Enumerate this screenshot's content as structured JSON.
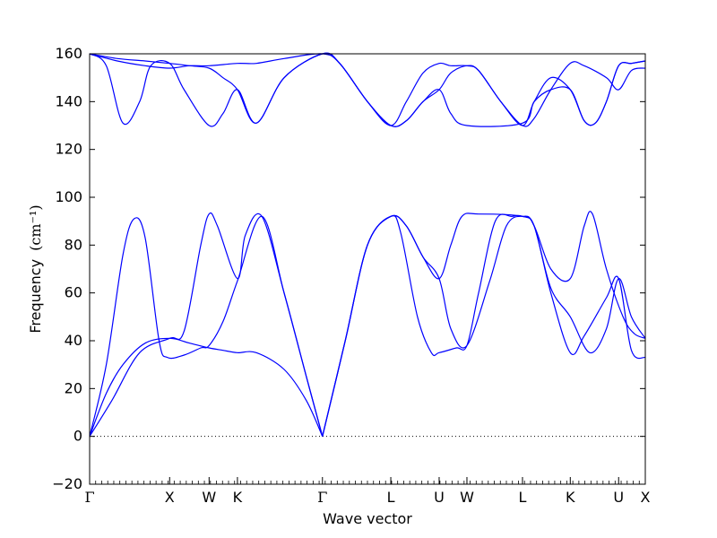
{
  "chart_data": {
    "type": "line",
    "xlabel": "Wave vector",
    "ylabel": "Frequency",
    "ylabel_unit": "(cm⁻¹)",
    "ylim": [
      -20,
      160
    ],
    "yticks": [
      -20,
      0,
      20,
      40,
      60,
      80,
      100,
      120,
      140,
      160
    ],
    "zero_line": "dotted",
    "line_color": "#0000ff",
    "x_points": [
      {
        "label": "Γ",
        "pos": 0
      },
      {
        "label": "X",
        "pos": 0.144
      },
      {
        "label": "W",
        "pos": 0.215
      },
      {
        "label": "K",
        "pos": 0.266
      },
      {
        "label": "Γ",
        "pos": 0.419
      },
      {
        "label": "L",
        "pos": 0.542
      },
      {
        "label": "U",
        "pos": 0.629
      },
      {
        "label": "W",
        "pos": 0.679
      },
      {
        "label": "L",
        "pos": 0.779
      },
      {
        "label": "K",
        "pos": 0.865
      },
      {
        "label": "U",
        "pos": 0.952
      },
      {
        "label": "X",
        "pos": 1.0
      }
    ],
    "series": [
      {
        "values": [
          [
            0,
            0
          ],
          [
            0.03,
            18
          ],
          [
            0.06,
            30
          ],
          [
            0.1,
            39
          ],
          [
            0.144,
            41
          ],
          [
            0.18,
            39
          ],
          [
            0.215,
            37
          ],
          [
            0.24,
            36
          ],
          [
            0.266,
            35
          ],
          [
            0.3,
            35
          ],
          [
            0.35,
            28
          ],
          [
            0.39,
            15
          ],
          [
            0.419,
            0
          ]
        ]
      },
      {
        "values": [
          [
            0,
            0
          ],
          [
            0.03,
            30
          ],
          [
            0.06,
            76
          ],
          [
            0.08,
            91
          ],
          [
            0.1,
            83
          ],
          [
            0.125,
            40
          ],
          [
            0.14,
            33
          ],
          [
            0.17,
            34
          ],
          [
            0.2,
            37
          ],
          [
            0.215,
            38
          ],
          [
            0.24,
            48
          ],
          [
            0.266,
            65
          ],
          [
            0.31,
            92
          ],
          [
            0.35,
            60
          ],
          [
            0.39,
            25
          ],
          [
            0.419,
            0
          ]
        ]
      },
      {
        "values": [
          [
            0,
            0
          ],
          [
            0.04,
            15
          ],
          [
            0.09,
            35
          ],
          [
            0.144,
            41
          ],
          [
            0.17,
            44
          ],
          [
            0.2,
            80
          ],
          [
            0.215,
            93
          ],
          [
            0.23,
            88
          ],
          [
            0.266,
            66
          ],
          [
            0.28,
            84
          ],
          [
            0.31,
            92
          ],
          [
            0.35,
            60
          ],
          [
            0.39,
            25
          ],
          [
            0.419,
            0
          ]
        ]
      },
      {
        "values": [
          [
            0.419,
            0
          ],
          [
            0.46,
            40
          ],
          [
            0.5,
            80
          ],
          [
            0.542,
            92
          ],
          [
            0.56,
            85
          ],
          [
            0.59,
            50
          ],
          [
            0.615,
            35
          ],
          [
            0.629,
            35
          ],
          [
            0.66,
            37
          ],
          [
            0.679,
            38
          ],
          [
            0.7,
            60
          ],
          [
            0.73,
            90
          ],
          [
            0.76,
            92
          ],
          [
            0.779,
            92
          ],
          [
            0.8,
            88
          ],
          [
            0.83,
            60
          ],
          [
            0.865,
            35
          ],
          [
            0.89,
            42
          ],
          [
            0.93,
            58
          ],
          [
            0.952,
            66
          ],
          [
            0.975,
            36
          ],
          [
            1.0,
            33
          ]
        ]
      },
      {
        "values": [
          [
            0.419,
            0
          ],
          [
            0.46,
            40
          ],
          [
            0.5,
            80
          ],
          [
            0.542,
            92
          ],
          [
            0.57,
            88
          ],
          [
            0.6,
            75
          ],
          [
            0.629,
            66
          ],
          [
            0.65,
            80
          ],
          [
            0.67,
            92
          ],
          [
            0.7,
            93
          ],
          [
            0.779,
            92
          ],
          [
            0.8,
            88
          ],
          [
            0.83,
            70
          ],
          [
            0.865,
            66
          ],
          [
            0.89,
            88
          ],
          [
            0.905,
            93
          ],
          [
            0.93,
            70
          ],
          [
            0.96,
            50
          ],
          [
            0.98,
            43
          ],
          [
            1.0,
            41
          ]
        ]
      },
      {
        "values": [
          [
            0.419,
            0
          ],
          [
            0.46,
            40
          ],
          [
            0.5,
            80
          ],
          [
            0.542,
            92
          ],
          [
            0.57,
            88
          ],
          [
            0.6,
            75
          ],
          [
            0.629,
            66
          ],
          [
            0.65,
            45
          ],
          [
            0.679,
            38
          ],
          [
            0.72,
            65
          ],
          [
            0.75,
            88
          ],
          [
            0.779,
            92
          ],
          [
            0.8,
            88
          ],
          [
            0.83,
            62
          ],
          [
            0.865,
            50
          ],
          [
            0.9,
            35
          ],
          [
            0.93,
            45
          ],
          [
            0.952,
            66
          ],
          [
            0.975,
            50
          ],
          [
            1.0,
            41
          ]
        ]
      },
      {
        "values": [
          [
            0,
            160
          ],
          [
            0.05,
            157
          ],
          [
            0.1,
            155
          ],
          [
            0.144,
            154
          ],
          [
            0.18,
            155
          ],
          [
            0.215,
            155
          ],
          [
            0.266,
            156
          ],
          [
            0.3,
            156
          ],
          [
            0.35,
            158
          ],
          [
            0.419,
            160
          ],
          [
            0.45,
            156
          ],
          [
            0.5,
            140
          ],
          [
            0.542,
            130
          ],
          [
            0.57,
            132
          ],
          [
            0.6,
            140
          ],
          [
            0.629,
            145
          ],
          [
            0.65,
            152
          ],
          [
            0.679,
            155
          ],
          [
            0.7,
            153
          ],
          [
            0.74,
            140
          ],
          [
            0.779,
            130
          ],
          [
            0.8,
            133
          ],
          [
            0.83,
            145
          ],
          [
            0.865,
            156
          ],
          [
            0.89,
            155
          ],
          [
            0.93,
            150
          ],
          [
            0.952,
            145
          ],
          [
            0.975,
            153
          ],
          [
            1.0,
            154
          ]
        ]
      },
      {
        "values": [
          [
            0,
            160
          ],
          [
            0.05,
            158
          ],
          [
            0.1,
            157
          ],
          [
            0.144,
            156
          ],
          [
            0.18,
            155
          ],
          [
            0.215,
            154
          ],
          [
            0.24,
            150
          ],
          [
            0.266,
            145
          ],
          [
            0.3,
            131
          ],
          [
            0.35,
            150
          ],
          [
            0.419,
            160
          ],
          [
            0.45,
            156
          ],
          [
            0.5,
            140
          ],
          [
            0.542,
            130
          ],
          [
            0.57,
            140
          ],
          [
            0.6,
            152
          ],
          [
            0.629,
            156
          ],
          [
            0.65,
            155
          ],
          [
            0.679,
            155
          ],
          [
            0.7,
            153
          ],
          [
            0.74,
            140
          ],
          [
            0.779,
            130
          ],
          [
            0.8,
            140
          ],
          [
            0.83,
            150
          ],
          [
            0.865,
            145
          ],
          [
            0.89,
            132
          ],
          [
            0.91,
            131
          ],
          [
            0.93,
            140
          ],
          [
            0.952,
            155
          ],
          [
            0.975,
            156
          ],
          [
            1.0,
            157
          ]
        ]
      },
      {
        "values": [
          [
            0,
            160
          ],
          [
            0.03,
            155
          ],
          [
            0.06,
            131
          ],
          [
            0.09,
            140
          ],
          [
            0.11,
            155
          ],
          [
            0.144,
            156
          ],
          [
            0.17,
            145
          ],
          [
            0.215,
            130
          ],
          [
            0.24,
            135
          ],
          [
            0.266,
            145
          ],
          [
            0.3,
            131
          ],
          [
            0.35,
            150
          ],
          [
            0.419,
            160
          ],
          [
            0.45,
            156
          ],
          [
            0.5,
            140
          ],
          [
            0.542,
            130
          ],
          [
            0.57,
            132
          ],
          [
            0.6,
            140
          ],
          [
            0.629,
            145
          ],
          [
            0.65,
            135
          ],
          [
            0.679,
            130
          ],
          [
            0.779,
            131
          ],
          [
            0.8,
            140
          ],
          [
            0.83,
            145
          ],
          [
            0.865,
            145
          ],
          [
            0.89,
            132
          ],
          [
            0.91,
            131
          ],
          [
            0.93,
            140
          ],
          [
            0.952,
            155
          ],
          [
            0.975,
            156
          ],
          [
            1.0,
            157
          ]
        ]
      }
    ]
  }
}
